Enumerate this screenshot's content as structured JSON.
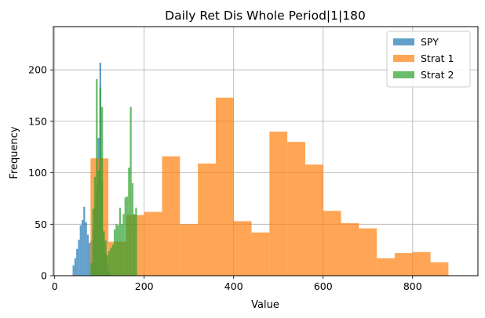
{
  "chart_data": {
    "type": "bar",
    "title": "Daily Ret Dis Whole Period|1|180",
    "xlabel": "Value",
    "ylabel": "Frequency",
    "xlim": [
      -3,
      946
    ],
    "ylim": [
      0,
      242
    ],
    "xticks": [
      0,
      200,
      400,
      600,
      800
    ],
    "yticks": [
      0,
      50,
      100,
      150,
      200
    ],
    "grid": true,
    "legend_position": "top-right",
    "series": [
      {
        "name": "SPY",
        "color": "#1f77b4",
        "bin_edges": [
          40,
          44,
          48,
          52,
          56,
          60,
          64,
          68,
          72,
          76,
          80,
          84,
          88,
          92,
          96,
          100,
          104,
          108,
          112,
          116,
          120,
          124
        ],
        "values": [
          10,
          17,
          26,
          35,
          49,
          54,
          67,
          52,
          40,
          32,
          34,
          45,
          66,
          88,
          134,
          207,
          92,
          44,
          22,
          11,
          4
        ]
      },
      {
        "name": "Strat 1",
        "color": "#ff7f0e",
        "bin_edges": [
          80,
          120,
          160,
          200,
          240,
          280,
          320,
          360,
          400,
          440,
          480,
          520,
          560,
          600,
          640,
          680,
          720,
          760,
          800,
          840,
          880,
          920
        ],
        "values": [
          114,
          33,
          59,
          62,
          116,
          50,
          109,
          173,
          53,
          42,
          140,
          130,
          108,
          63,
          51,
          46,
          17,
          22,
          23,
          13,
          0
        ]
      },
      {
        "name": "Strat 2",
        "color": "#2ca02c",
        "bin_edges": [
          80,
          84,
          88,
          92,
          96,
          100,
          104,
          108,
          112,
          116,
          120,
          124,
          128,
          132,
          136,
          140,
          144,
          148,
          152,
          156,
          160,
          164,
          168,
          172,
          176,
          180,
          184
        ],
        "values": [
          12,
          65,
          96,
          191,
          102,
          183,
          164,
          42,
          34,
          20,
          24,
          27,
          30,
          45,
          50,
          49,
          66,
          50,
          60,
          76,
          77,
          105,
          164,
          90,
          60,
          66
        ]
      }
    ]
  }
}
